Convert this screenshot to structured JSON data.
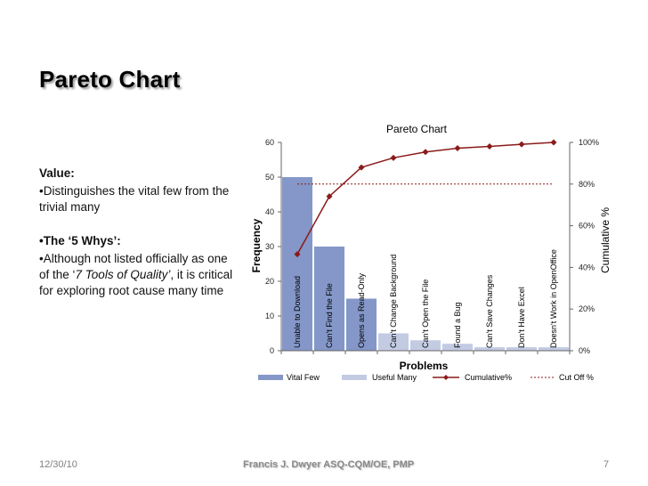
{
  "slide": {
    "title": "Pareto Chart",
    "body": {
      "value_heading": "Value:",
      "value_bullet": "•Distinguishes the vital few from the trivial many",
      "whys_heading": "•The ‘5 Whys’:",
      "whys_bullet_pre": "•Although not listed officially as one of the ‘",
      "whys_bullet_italic": "7 Tools of Quality’",
      "whys_bullet_post": ",  it is critical for exploring root cause many time"
    },
    "footer": {
      "date": "12/30/10",
      "author": "Francis J. Dwyer ASQ-CQM/OE, PMP",
      "page": "7"
    }
  },
  "chart_data": {
    "type": "bar",
    "title": "Pareto Chart",
    "xlabel": "Problems",
    "ylabel": "Frequency",
    "y2label": "Cumulative %",
    "categories": [
      "Unable to Download",
      "Can't Find the File",
      "Opens as Read-Only",
      "Can't Change Background",
      "Can't Open the File",
      "Found a Bug",
      "Can't Save Changes",
      "Don't Have Excel",
      "Doesn't Work in OpenOffice"
    ],
    "series": [
      {
        "name": "Vital Few",
        "type": "bar",
        "values": [
          50,
          30,
          15,
          0,
          0,
          0,
          0,
          0,
          0
        ],
        "color": "#8497c8"
      },
      {
        "name": "Useful Many",
        "type": "bar",
        "values": [
          0,
          0,
          0,
          5,
          3,
          2,
          1,
          1,
          1
        ],
        "color": "#c3cbe3"
      },
      {
        "name": "Cumulative%",
        "type": "line",
        "axis": "right",
        "values": [
          46.3,
          74.1,
          88.0,
          92.6,
          95.4,
          97.2,
          98.1,
          99.1,
          100
        ],
        "color": "#8b1a1a"
      },
      {
        "name": "Cut Off %",
        "type": "line",
        "axis": "right",
        "style": "dashed",
        "values": [
          80,
          80,
          80,
          80,
          80,
          80,
          80,
          80,
          80
        ],
        "color": "#8b1a1a"
      }
    ],
    "y_ticks": [
      "0",
      "10",
      "20",
      "30",
      "40",
      "50",
      "60"
    ],
    "y2_ticks": [
      "0%",
      "20%",
      "40%",
      "60%",
      "80%",
      "100%"
    ],
    "ylim": [
      0,
      60
    ],
    "y2lim": [
      0,
      100
    ],
    "legend": "bottom",
    "grid": false
  }
}
